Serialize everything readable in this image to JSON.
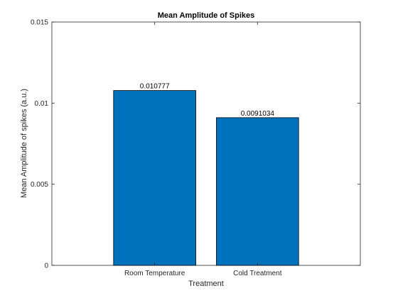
{
  "chart_data": {
    "type": "bar",
    "title": "Mean Amplitude of Spikes",
    "xlabel": "Treatment",
    "ylabel": "Mean Amplitude of spikes (a.u.)",
    "categories": [
      "Room Temperature",
      "Cold Treatment"
    ],
    "values": [
      0.010777,
      0.0091034
    ],
    "data_labels": [
      "0.010777",
      "0.0091034"
    ],
    "ylim": [
      0,
      0.015
    ],
    "yticks": [
      0,
      0.005,
      0.01,
      0.015
    ],
    "ytick_labels": [
      "0",
      "0.005",
      "0.01",
      "0.015"
    ],
    "grid": false,
    "legend": "none",
    "colors": {
      "bar": "#0072BD",
      "bar_edge": "#000000",
      "axes": "#262626"
    }
  }
}
